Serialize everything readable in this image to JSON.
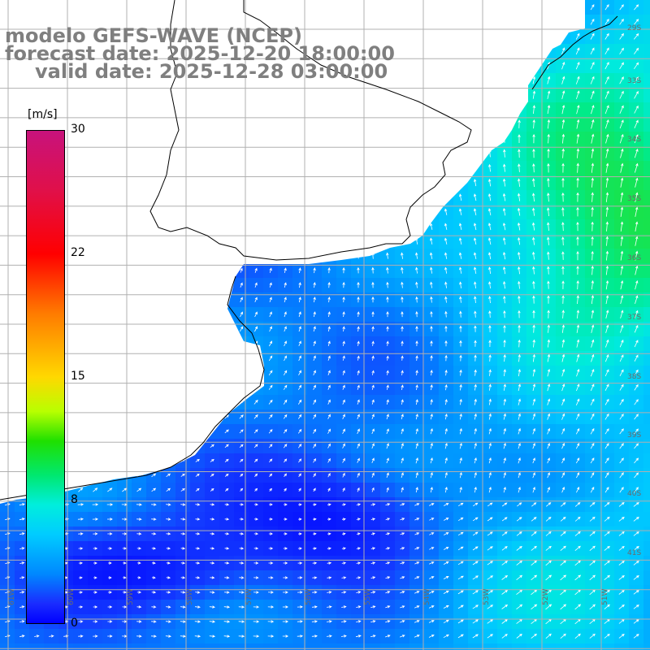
{
  "titles": {
    "model": "modelo GEFS-WAVE (NCEP)",
    "forecast": "forecast date: 2025-12-20 18:00:00",
    "valid": "valid date: 2025-12-28 03:00:00"
  },
  "colorbar": {
    "unit": "[m/s]",
    "ticks": [
      "30",
      "22",
      "15",
      "8",
      "0"
    ],
    "colors": [
      "#c8127c",
      "#ff0000",
      "#ff7a00",
      "#ffd800",
      "#1fe000",
      "#00eedd",
      "#00ccff",
      "#0088ff",
      "#0000ff"
    ]
  },
  "grid": {
    "lat_labels": [
      "29S",
      "33S",
      "34S",
      "35S",
      "36S",
      "37S",
      "38S",
      "39S",
      "40S",
      "41S"
    ],
    "lon_labels": [
      "61W",
      "60W",
      "59W",
      "58W",
      "57W",
      "56W",
      "55W",
      "54W",
      "53W",
      "52W",
      "51W"
    ]
  },
  "colors": {
    "land": "#ffffff",
    "coast": "#000000",
    "grid": "#b0b0b0"
  }
}
